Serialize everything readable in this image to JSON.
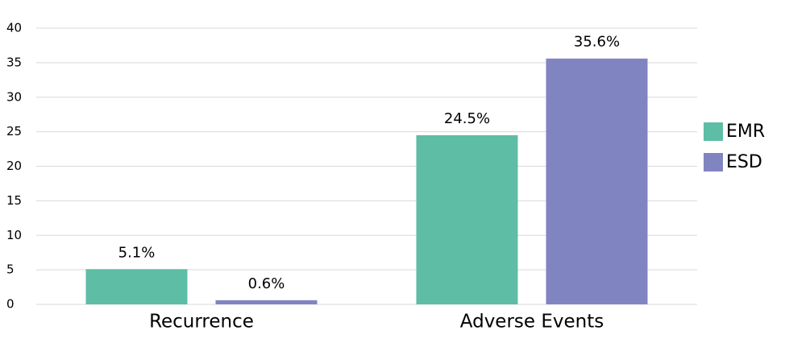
{
  "chart_data": {
    "type": "bar",
    "categories": [
      "Recurrence",
      "Adverse Events"
    ],
    "series": [
      {
        "name": "EMR",
        "color": "#5dbda5",
        "values": [
          5.1,
          24.5
        ],
        "value_labels": [
          "5.1%",
          "24.5%"
        ]
      },
      {
        "name": "ESD",
        "color": "#8085c1",
        "values": [
          0.6,
          35.6
        ],
        "value_labels": [
          "0.6%",
          "35.6%"
        ]
      }
    ],
    "ylim": [
      0,
      40
    ],
    "yticks": [
      0,
      5,
      10,
      15,
      20,
      25,
      30,
      35,
      40
    ],
    "grid": true,
    "legend": "right"
  }
}
